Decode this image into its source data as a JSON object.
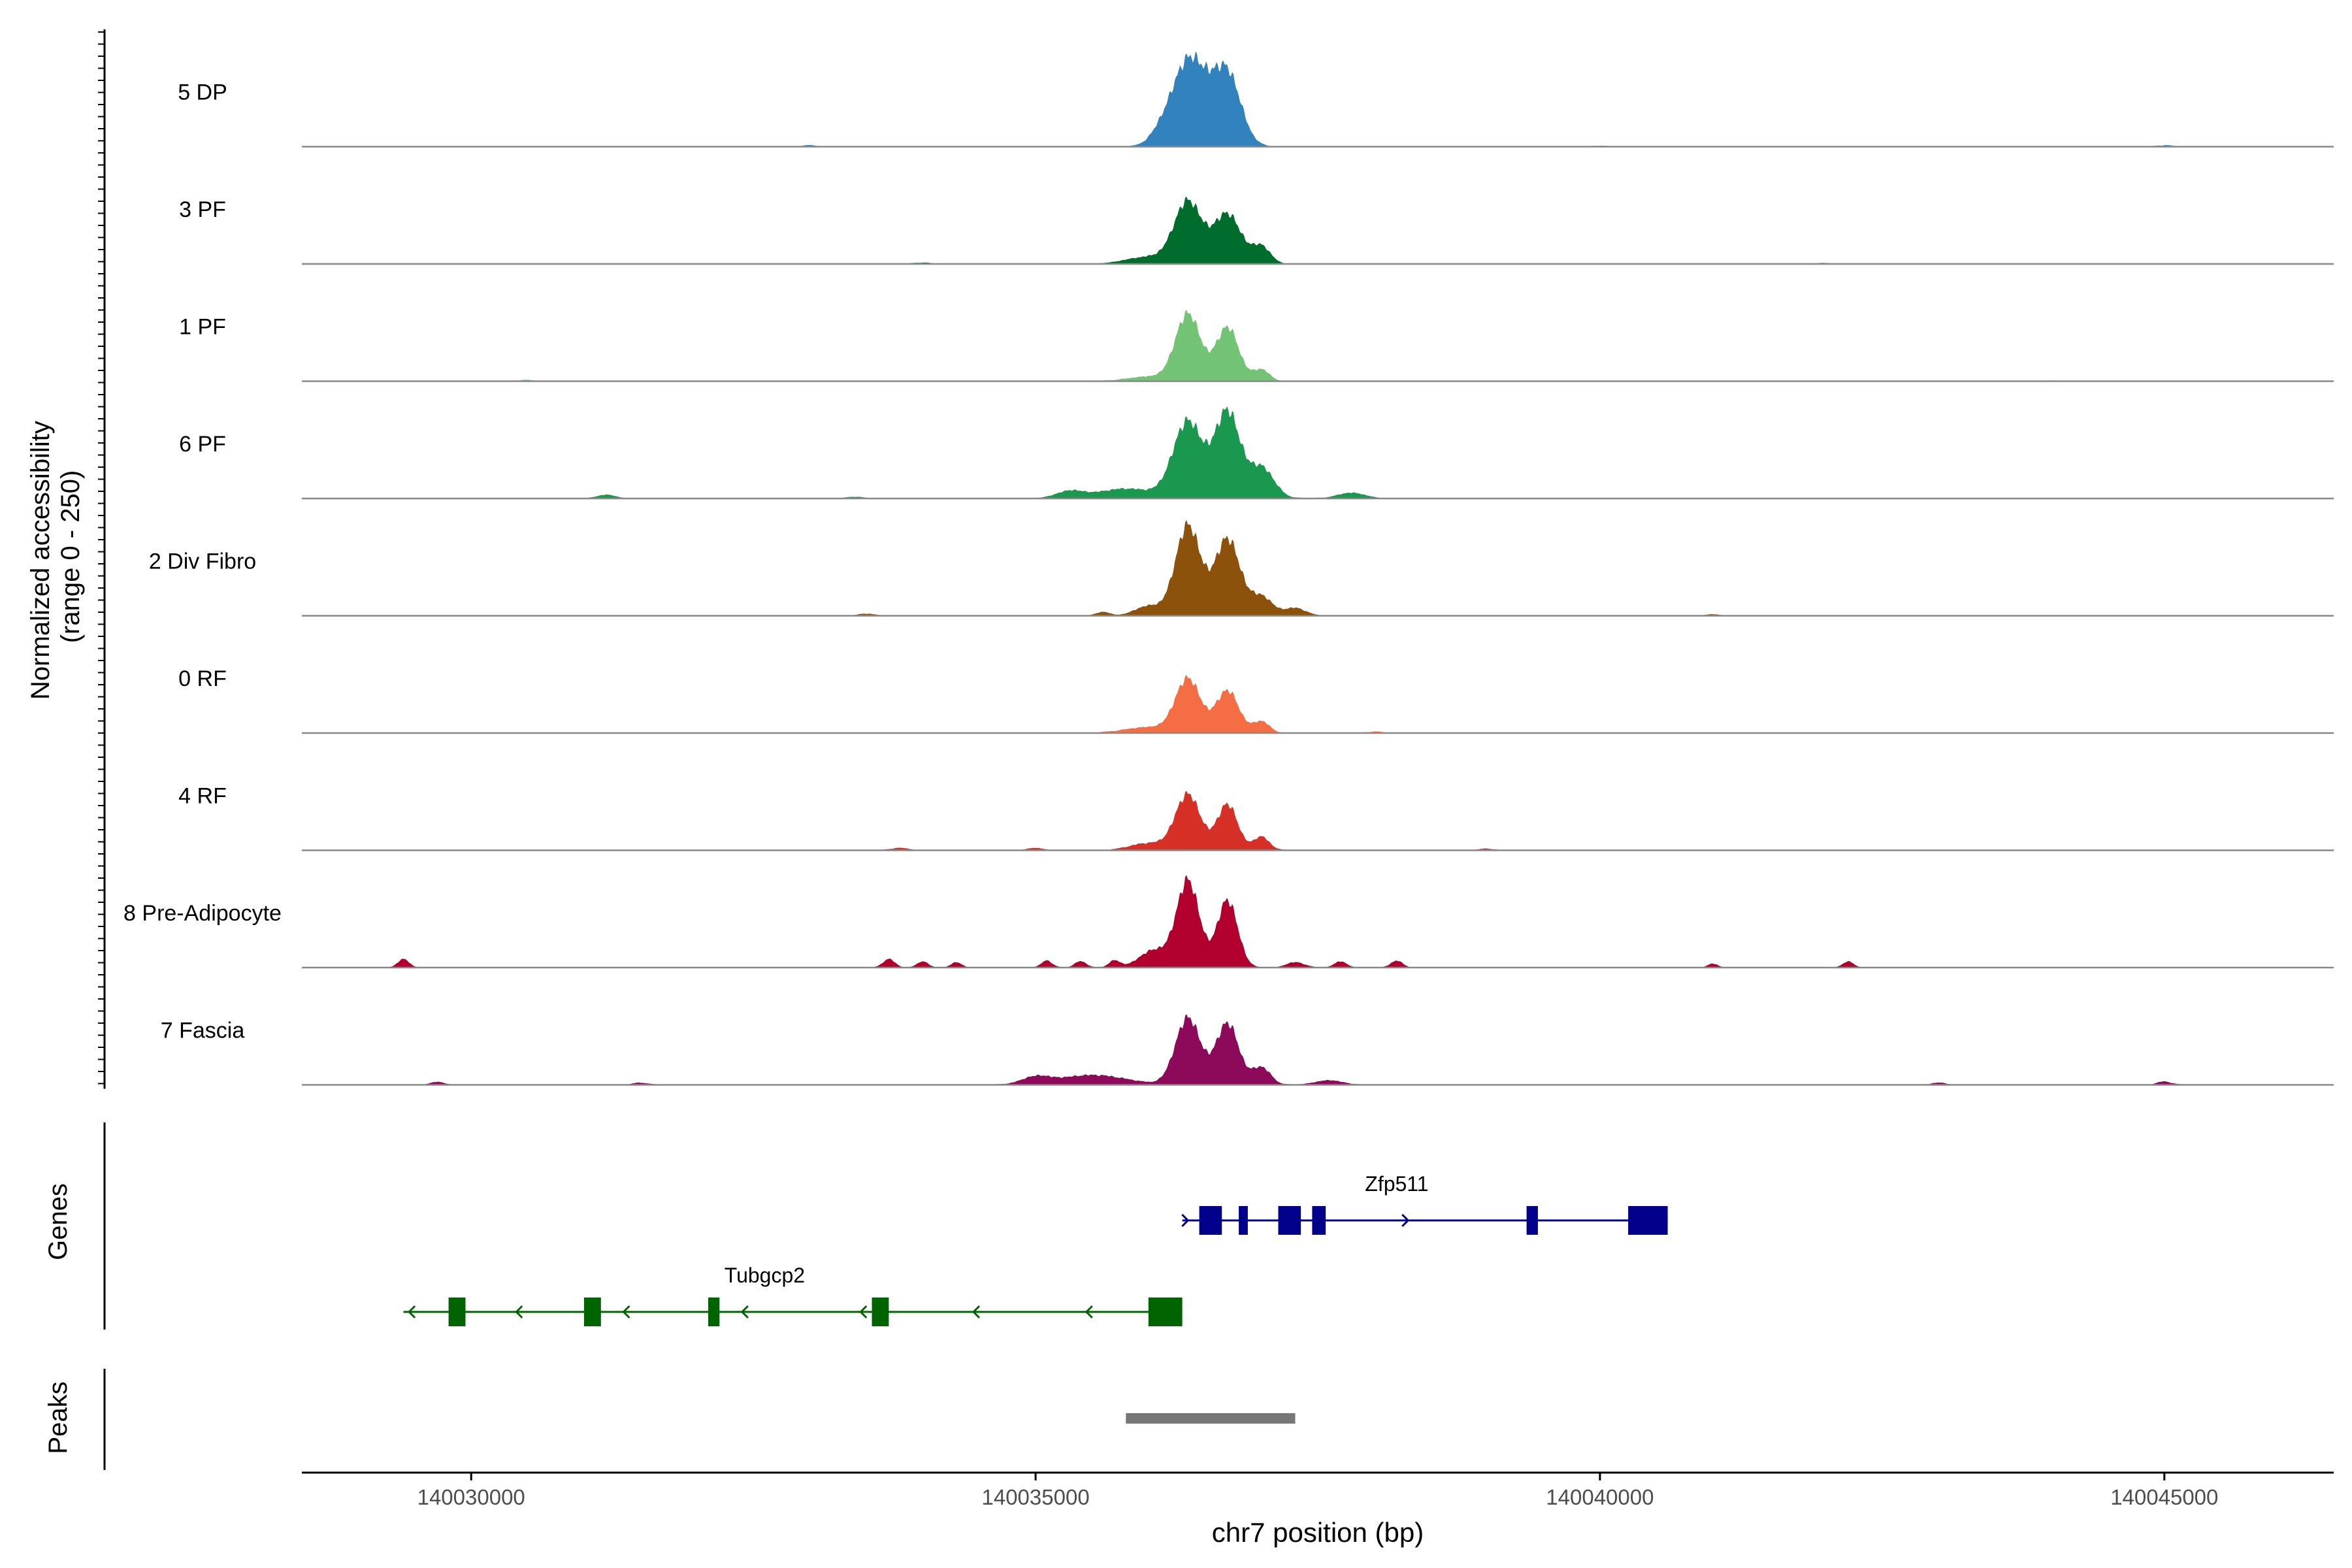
{
  "chart_data": {
    "type": "area",
    "title": "",
    "ylabel_line1": "Normalized accessibility",
    "ylabel_line2": "(range 0 - 250)",
    "xlabel": "chr7 position (bp)",
    "xlim": [
      140028500,
      140046500
    ],
    "ylim": [
      0,
      250
    ],
    "x_ticks": [
      140030000,
      140035000,
      140040000,
      140045000
    ],
    "x_tick_labels": [
      "140030000",
      "140035000",
      "140040000",
      "140045000"
    ],
    "series": [
      {
        "name": "5 DP",
        "color": "#3182BD",
        "peaks": [
          [
            140036350,
            150,
            210
          ],
          [
            140036700,
            120,
            180
          ],
          [
            140036100,
            95,
            20
          ],
          [
            140036500,
            140,
            35
          ],
          [
            140033000,
            60,
            3
          ],
          [
            140040000,
            50,
            2
          ],
          [
            140045000,
            60,
            3
          ]
        ]
      },
      {
        "name": "3 PF",
        "color": "#006D2C",
        "peaks": [
          [
            140036350,
            120,
            160
          ],
          [
            140036700,
            120,
            130
          ],
          [
            140037000,
            80,
            45
          ],
          [
            140036000,
            200,
            18
          ],
          [
            140034000,
            70,
            3
          ],
          [
            140042000,
            60,
            2
          ]
        ]
      },
      {
        "name": "1 PF",
        "color": "#74C476",
        "peaks": [
          [
            140036350,
            110,
            175
          ],
          [
            140036700,
            100,
            140
          ],
          [
            140037000,
            70,
            30
          ],
          [
            140036000,
            180,
            12
          ],
          [
            140030500,
            60,
            3
          ],
          [
            140044000,
            60,
            2
          ]
        ]
      },
      {
        "name": "6 PF",
        "color": "#1A9850",
        "peaks": [
          [
            140036350,
            130,
            200
          ],
          [
            140036700,
            110,
            225
          ],
          [
            140037000,
            110,
            80
          ],
          [
            140035800,
            250,
            25
          ],
          [
            140035300,
            120,
            18
          ],
          [
            140037800,
            120,
            15
          ],
          [
            140031200,
            80,
            10
          ],
          [
            140033400,
            60,
            4
          ]
        ]
      },
      {
        "name": "2 Div Fibro",
        "color": "#8C510A",
        "peaks": [
          [
            140036350,
            110,
            235
          ],
          [
            140036700,
            110,
            200
          ],
          [
            140037000,
            100,
            50
          ],
          [
            140037300,
            90,
            20
          ],
          [
            140036000,
            120,
            25
          ],
          [
            140035600,
            60,
            10
          ],
          [
            140033500,
            60,
            5
          ],
          [
            140041000,
            60,
            4
          ]
        ]
      },
      {
        "name": "0 RF",
        "color": "#F46D43",
        "peaks": [
          [
            140036350,
            110,
            140
          ],
          [
            140036700,
            100,
            110
          ],
          [
            140037000,
            70,
            30
          ],
          [
            140036000,
            200,
            15
          ],
          [
            140038000,
            60,
            3
          ]
        ]
      },
      {
        "name": "4 RF",
        "color": "#D73027",
        "peaks": [
          [
            140036350,
            110,
            145
          ],
          [
            140036700,
            90,
            120
          ],
          [
            140037000,
            70,
            35
          ],
          [
            140036000,
            160,
            18
          ],
          [
            140033800,
            80,
            6
          ],
          [
            140035000,
            60,
            6
          ],
          [
            140039000,
            60,
            4
          ]
        ]
      },
      {
        "name": "8 Pre-Adipocyte",
        "color": "#B2002E",
        "peaks": [
          [
            140036350,
            100,
            225
          ],
          [
            140036700,
            90,
            175
          ],
          [
            140036050,
            130,
            45
          ],
          [
            140029400,
            50,
            22
          ],
          [
            140033700,
            50,
            22
          ],
          [
            140034000,
            45,
            16
          ],
          [
            140034300,
            45,
            14
          ],
          [
            140035100,
            45,
            18
          ],
          [
            140035400,
            50,
            16
          ],
          [
            140035700,
            50,
            18
          ],
          [
            140037300,
            80,
            14
          ],
          [
            140037700,
            50,
            16
          ],
          [
            140038200,
            50,
            18
          ],
          [
            140041000,
            45,
            10
          ],
          [
            140042200,
            45,
            16
          ]
        ]
      },
      {
        "name": "7 Fascia",
        "color": "#8C0A59",
        "peaks": [
          [
            140036350,
            110,
            175
          ],
          [
            140036700,
            100,
            160
          ],
          [
            140037000,
            80,
            45
          ],
          [
            140035500,
            300,
            25
          ],
          [
            140035000,
            120,
            18
          ],
          [
            140037600,
            120,
            12
          ],
          [
            140029700,
            60,
            8
          ],
          [
            140031500,
            60,
            5
          ],
          [
            140043000,
            60,
            6
          ],
          [
            140045000,
            60,
            8
          ]
        ]
      }
    ],
    "genes_label": "Genes",
    "genes": [
      {
        "name": "Zfp511",
        "strand": "+",
        "color": "#00008B",
        "start": 140036300,
        "end": 140040600,
        "exons": [
          [
            140036450,
            140036650
          ],
          [
            140036800,
            140036880
          ],
          [
            140037150,
            140037350
          ],
          [
            140037450,
            140037570
          ],
          [
            140039350,
            140039450
          ],
          [
            140040250,
            140040600
          ]
        ],
        "arrows": [
          140036350,
          140038300
        ]
      },
      {
        "name": "Tubgcp2",
        "strand": "-",
        "color": "#006400",
        "start": 140029400,
        "end": 140036300,
        "exons": [
          [
            140029800,
            140029950
          ],
          [
            140031000,
            140031150
          ],
          [
            140032100,
            140032200
          ],
          [
            140033550,
            140033700
          ],
          [
            140036000,
            140036300
          ]
        ],
        "arrows": [
          140029450,
          140030400,
          140031350,
          140032400,
          140033450,
          140034450,
          140035450
        ]
      }
    ],
    "peaks_label": "Peaks",
    "peak_regions": [
      [
        140035800,
        140037300
      ]
    ],
    "peak_color": "#777777"
  }
}
